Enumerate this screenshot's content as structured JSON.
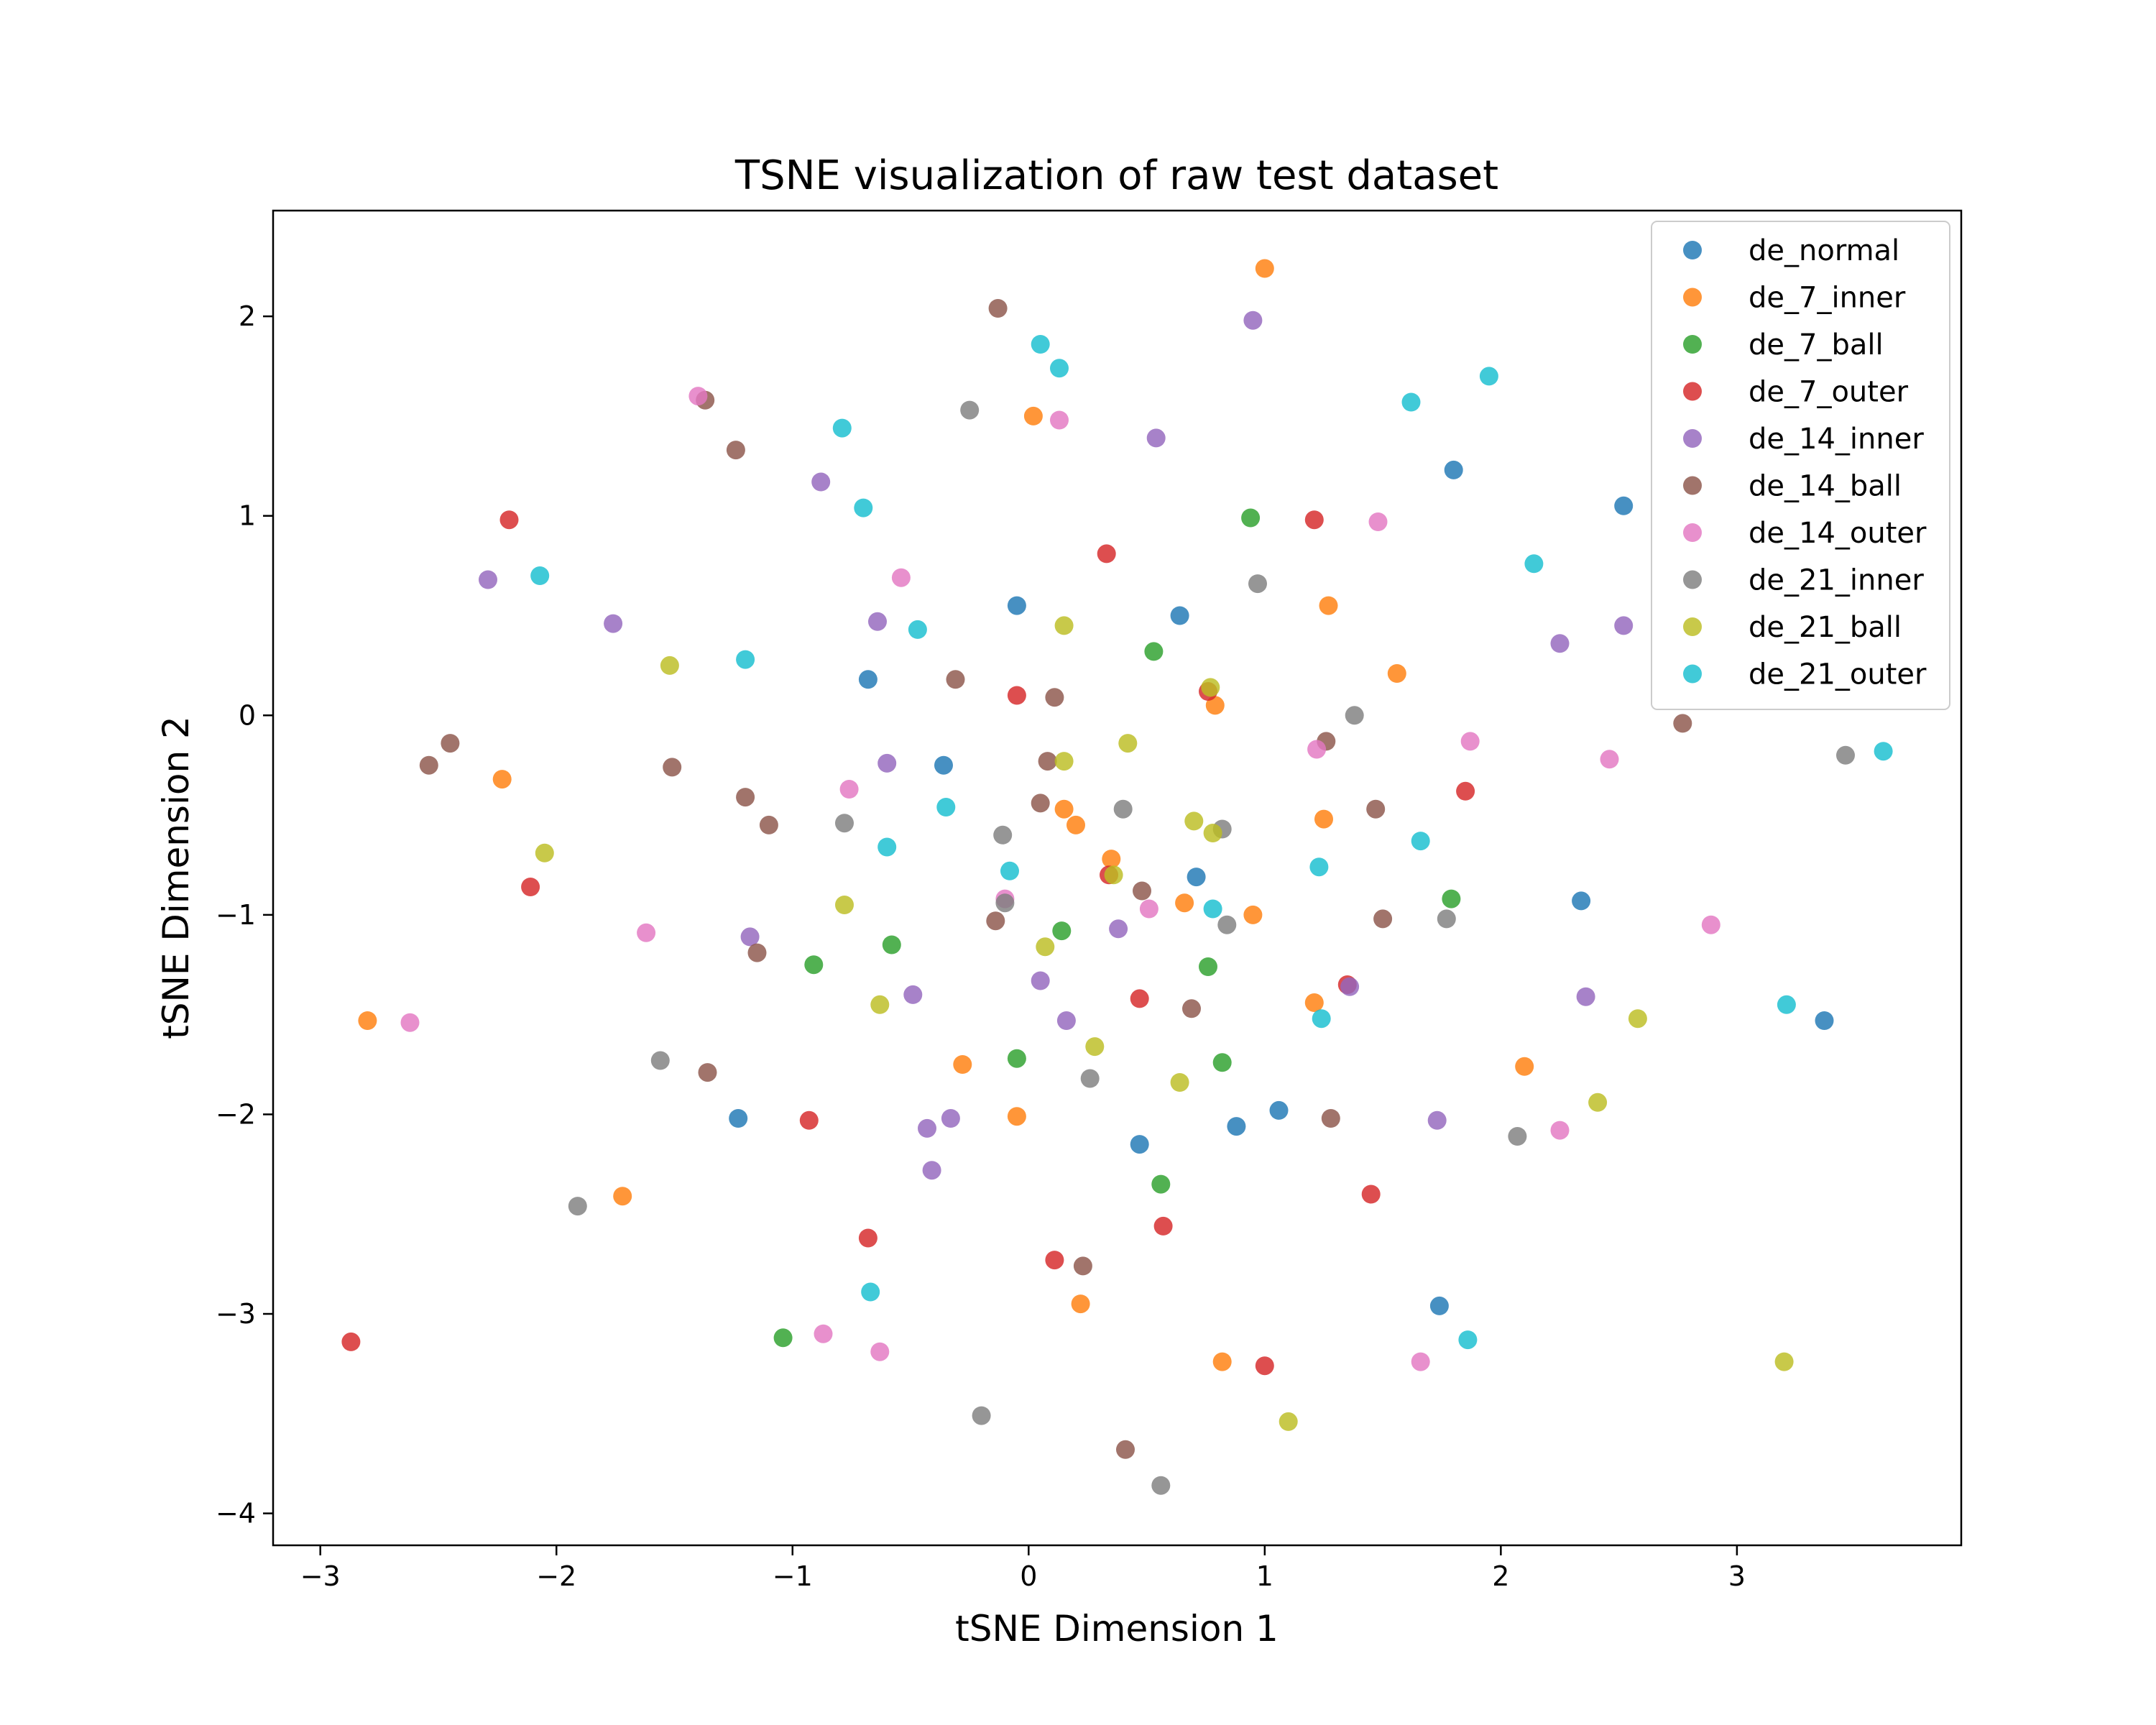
{
  "chart_data": {
    "type": "scatter",
    "title": "TSNE visualization of raw test dataset",
    "xlabel": "tSNE Dimension 1",
    "ylabel": "tSNE Dimension 2",
    "xlim": [
      -3.2,
      3.95
    ],
    "ylim": [
      -4.16,
      2.53
    ],
    "xticks": [
      -3,
      -2,
      -1,
      0,
      1,
      2,
      3
    ],
    "yticks": [
      -4,
      -3,
      -2,
      -1,
      0,
      1,
      2
    ],
    "xtick_labels": [
      "−3",
      "−2",
      "−1",
      "0",
      "1",
      "2",
      "3"
    ],
    "ytick_labels": [
      "−4",
      "−3",
      "−2",
      "−1",
      "0",
      "1",
      "2"
    ],
    "grid": false,
    "legend_position": "top-right",
    "series": [
      {
        "name": "de_normal",
        "color": "#1f77b4",
        "points": [
          [
            -0.05,
            0.55
          ],
          [
            -0.68,
            0.18
          ],
          [
            -0.36,
            -0.25
          ],
          [
            0.64,
            0.5
          ],
          [
            1.8,
            1.23
          ],
          [
            2.52,
            1.05
          ],
          [
            0.71,
            -0.81
          ],
          [
            2.34,
            -0.93
          ],
          [
            3.37,
            -1.53
          ],
          [
            -1.23,
            -2.02
          ],
          [
            0.47,
            -2.15
          ],
          [
            0.88,
            -2.06
          ],
          [
            1.06,
            -1.98
          ],
          [
            1.74,
            -2.96
          ]
        ]
      },
      {
        "name": "de_7_inner",
        "color": "#ff7f0e",
        "points": [
          [
            1.0,
            2.24
          ],
          [
            0.02,
            1.5
          ],
          [
            1.27,
            0.55
          ],
          [
            1.56,
            0.21
          ],
          [
            0.79,
            0.05
          ],
          [
            -2.23,
            -0.32
          ],
          [
            0.15,
            -0.47
          ],
          [
            0.2,
            -0.55
          ],
          [
            0.35,
            -0.72
          ],
          [
            0.66,
            -0.94
          ],
          [
            0.95,
            -1.0
          ],
          [
            1.25,
            -0.52
          ],
          [
            1.21,
            -1.44
          ],
          [
            -2.8,
            -1.53
          ],
          [
            -0.28,
            -1.75
          ],
          [
            2.1,
            -1.76
          ],
          [
            -0.05,
            -2.01
          ],
          [
            -1.72,
            -2.41
          ],
          [
            0.22,
            -2.95
          ],
          [
            0.82,
            -3.24
          ]
        ]
      },
      {
        "name": "de_7_ball",
        "color": "#2ca02c",
        "points": [
          [
            0.94,
            0.99
          ],
          [
            0.53,
            0.32
          ],
          [
            1.79,
            -0.92
          ],
          [
            -0.91,
            -1.25
          ],
          [
            -0.58,
            -1.15
          ],
          [
            0.14,
            -1.08
          ],
          [
            0.76,
            -1.26
          ],
          [
            -0.05,
            -1.72
          ],
          [
            0.82,
            -1.74
          ],
          [
            0.56,
            -2.35
          ],
          [
            -1.04,
            -3.12
          ]
        ]
      },
      {
        "name": "de_7_outer",
        "color": "#d62728",
        "points": [
          [
            -2.2,
            0.98
          ],
          [
            0.33,
            0.81
          ],
          [
            1.21,
            0.98
          ],
          [
            -0.05,
            0.1
          ],
          [
            0.76,
            0.12
          ],
          [
            1.85,
            -0.38
          ],
          [
            -2.11,
            -0.86
          ],
          [
            0.34,
            -0.8
          ],
          [
            0.47,
            -1.42
          ],
          [
            1.35,
            -1.35
          ],
          [
            -0.93,
            -2.03
          ],
          [
            1.45,
            -2.4
          ],
          [
            -0.68,
            -2.62
          ],
          [
            0.11,
            -2.73
          ],
          [
            0.57,
            -2.56
          ],
          [
            -2.87,
            -3.14
          ],
          [
            1.0,
            -3.26
          ]
        ]
      },
      {
        "name": "de_14_inner",
        "color": "#9467bd",
        "points": [
          [
            0.95,
            1.98
          ],
          [
            0.54,
            1.39
          ],
          [
            -0.88,
            1.17
          ],
          [
            -2.29,
            0.68
          ],
          [
            -1.76,
            0.46
          ],
          [
            -0.64,
            0.47
          ],
          [
            2.25,
            0.36
          ],
          [
            2.52,
            0.45
          ],
          [
            -0.6,
            -0.24
          ],
          [
            -1.18,
            -1.11
          ],
          [
            0.38,
            -1.07
          ],
          [
            0.05,
            -1.33
          ],
          [
            -0.49,
            -1.4
          ],
          [
            0.16,
            -1.53
          ],
          [
            1.36,
            -1.36
          ],
          [
            2.36,
            -1.41
          ],
          [
            -0.43,
            -2.07
          ],
          [
            -0.33,
            -2.02
          ],
          [
            -0.41,
            -2.28
          ],
          [
            1.73,
            -2.03
          ]
        ]
      },
      {
        "name": "de_14_ball",
        "color": "#8c564b",
        "points": [
          [
            -0.13,
            2.04
          ],
          [
            -1.37,
            1.58
          ],
          [
            -1.24,
            1.33
          ],
          [
            -0.31,
            0.18
          ],
          [
            0.11,
            0.09
          ],
          [
            -2.54,
            -0.25
          ],
          [
            -2.45,
            -0.14
          ],
          [
            -1.51,
            -0.26
          ],
          [
            0.08,
            -0.23
          ],
          [
            1.26,
            -0.13
          ],
          [
            2.77,
            -0.04
          ],
          [
            -1.2,
            -0.41
          ],
          [
            -1.1,
            -0.55
          ],
          [
            0.05,
            -0.44
          ],
          [
            1.47,
            -0.47
          ],
          [
            0.48,
            -0.88
          ],
          [
            -0.14,
            -1.03
          ],
          [
            1.5,
            -1.02
          ],
          [
            -1.15,
            -1.19
          ],
          [
            0.69,
            -1.47
          ],
          [
            -1.36,
            -1.79
          ],
          [
            1.28,
            -2.02
          ],
          [
            0.23,
            -2.76
          ],
          [
            0.41,
            -3.68
          ]
        ]
      },
      {
        "name": "de_14_outer",
        "color": "#e377c2",
        "points": [
          [
            -1.4,
            1.6
          ],
          [
            0.13,
            1.48
          ],
          [
            -0.54,
            0.69
          ],
          [
            1.48,
            0.97
          ],
          [
            1.22,
            -0.17
          ],
          [
            1.87,
            -0.13
          ],
          [
            2.46,
            -0.22
          ],
          [
            -0.76,
            -0.37
          ],
          [
            -0.1,
            -0.92
          ],
          [
            0.51,
            -0.97
          ],
          [
            -1.62,
            -1.09
          ],
          [
            2.89,
            -1.05
          ],
          [
            -2.62,
            -1.54
          ],
          [
            2.25,
            -2.08
          ],
          [
            -0.87,
            -3.1
          ],
          [
            -0.63,
            -3.19
          ],
          [
            1.66,
            -3.24
          ]
        ]
      },
      {
        "name": "de_21_inner",
        "color": "#7f7f7f",
        "points": [
          [
            -0.25,
            1.53
          ],
          [
            0.97,
            0.66
          ],
          [
            1.38,
            0.0
          ],
          [
            3.46,
            -0.2
          ],
          [
            -0.78,
            -0.54
          ],
          [
            0.4,
            -0.47
          ],
          [
            0.82,
            -0.57
          ],
          [
            -0.11,
            -0.6
          ],
          [
            -0.1,
            -0.94
          ],
          [
            0.84,
            -1.05
          ],
          [
            1.77,
            -1.02
          ],
          [
            -1.56,
            -1.73
          ],
          [
            0.26,
            -1.82
          ],
          [
            2.07,
            -2.11
          ],
          [
            -1.91,
            -2.46
          ],
          [
            -0.2,
            -3.51
          ],
          [
            0.56,
            -3.86
          ]
        ]
      },
      {
        "name": "de_21_ball",
        "color": "#bcbd22",
        "points": [
          [
            -1.52,
            0.25
          ],
          [
            0.15,
            0.45
          ],
          [
            0.15,
            -0.23
          ],
          [
            0.42,
            -0.14
          ],
          [
            0.77,
            0.14
          ],
          [
            0.7,
            -0.53
          ],
          [
            0.78,
            -0.59
          ],
          [
            -2.05,
            -0.69
          ],
          [
            -0.78,
            -0.95
          ],
          [
            0.36,
            -0.8
          ],
          [
            0.07,
            -1.16
          ],
          [
            -0.63,
            -1.45
          ],
          [
            0.28,
            -1.66
          ],
          [
            0.64,
            -1.84
          ],
          [
            2.58,
            -1.52
          ],
          [
            2.41,
            -1.94
          ],
          [
            3.2,
            -3.24
          ],
          [
            1.1,
            -3.54
          ]
        ]
      },
      {
        "name": "de_21_outer",
        "color": "#17becf",
        "points": [
          [
            0.05,
            1.86
          ],
          [
            0.13,
            1.74
          ],
          [
            -0.79,
            1.44
          ],
          [
            -0.7,
            1.04
          ],
          [
            1.62,
            1.57
          ],
          [
            1.95,
            1.7
          ],
          [
            -2.07,
            0.7
          ],
          [
            2.14,
            0.76
          ],
          [
            -1.2,
            0.28
          ],
          [
            -0.47,
            0.43
          ],
          [
            3.62,
            -0.18
          ],
          [
            -0.35,
            -0.46
          ],
          [
            -0.6,
            -0.66
          ],
          [
            1.66,
            -0.63
          ],
          [
            -0.08,
            -0.78
          ],
          [
            1.23,
            -0.76
          ],
          [
            0.78,
            -0.97
          ],
          [
            3.21,
            -1.45
          ],
          [
            1.24,
            -1.52
          ],
          [
            -0.67,
            -2.89
          ],
          [
            1.86,
            -3.13
          ]
        ]
      }
    ]
  }
}
